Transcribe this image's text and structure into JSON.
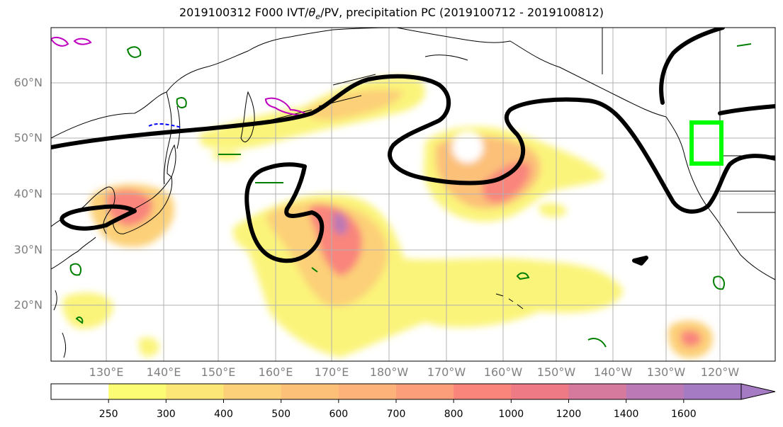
{
  "title_main": "2019100312 F000 IVT/",
  "title_theta": "θ",
  "title_sub": "e",
  "title_rest": "/PV, precipitation PC (2019100712 - 2019100812)",
  "lat_labels": [
    "60°N",
    "50°N",
    "40°N",
    "30°N",
    "20°N"
  ],
  "lon_labels": [
    "130°E",
    "140°E",
    "150°E",
    "160°E",
    "170°E",
    "180°W",
    "170°W",
    "160°W",
    "150°W",
    "140°W",
    "130°W",
    "120°W"
  ],
  "colorbar": {
    "ticks": [
      "250",
      "300",
      "400",
      "500",
      "600",
      "700",
      "800",
      "1000",
      "1200",
      "1400",
      "1600"
    ],
    "colors": [
      "#ffffff",
      "#fbfb74",
      "#fbe677",
      "#fcd078",
      "#fcc079",
      "#fdb27a",
      "#fd9e7a",
      "#f9857b",
      "#ee7a85",
      "#d57a9d",
      "#bb79b6",
      "#a57bc3"
    ]
  },
  "colors": {
    "ivt_contour": "#000000",
    "region_box": "#00ff00",
    "pv_green": "#007f00",
    "pv_magenta": "#c000c0",
    "pv_blue": "#0000ff",
    "coastline": "#000000",
    "grid": "#b0b0b0"
  }
}
